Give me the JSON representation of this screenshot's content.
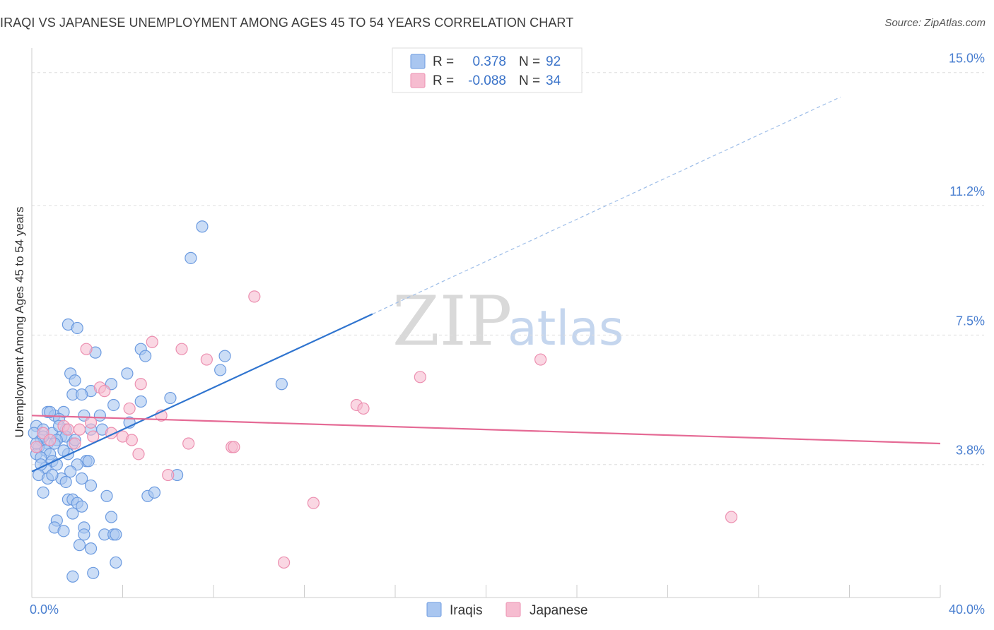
{
  "header": {
    "title": "IRAQI VS JAPANESE UNEMPLOYMENT AMONG AGES 45 TO 54 YEARS CORRELATION CHART",
    "source": "Source: ZipAtlas.com"
  },
  "watermark": {
    "zip": "ZIP",
    "atlas": "atlas"
  },
  "colors": {
    "iraqis_fill": "#a9c6f0",
    "iraqis_stroke": "#6c9be0",
    "iraqis_line": "#2f74cf",
    "japanese_fill": "#f6bcd0",
    "japanese_stroke": "#ec8fb0",
    "japanese_line": "#e56a95",
    "grid": "#dddddd",
    "tick_text": "#4a7fd0"
  },
  "legend_top": {
    "rows": [
      {
        "series": "iraqis",
        "r_label": "R =",
        "r_value": "0.378",
        "n_label": "N =",
        "n_value": "92"
      },
      {
        "series": "japanese",
        "r_label": "R =",
        "r_value": "-0.088",
        "n_label": "N =",
        "n_value": "34"
      }
    ]
  },
  "legend_bottom": {
    "items": [
      "Iraqis",
      "Japanese"
    ]
  },
  "chart_data": {
    "type": "scatter",
    "title": "IRAQI VS JAPANESE UNEMPLOYMENT AMONG AGES 45 TO 54 YEARS CORRELATION CHART",
    "xlabel": "",
    "ylabel": "Unemployment Among Ages 45 to 54 years",
    "xlim": [
      0,
      40
    ],
    "ylim": [
      0,
      15.6
    ],
    "x_tick_labels": [
      "0.0%",
      "40.0%"
    ],
    "y_ticks": [
      3.8,
      7.5,
      11.2,
      15.0
    ],
    "y_tick_labels": [
      "3.8%",
      "7.5%",
      "11.2%",
      "15.0%"
    ],
    "grid": true,
    "legend_position": "top-center",
    "series": [
      {
        "name": "Iraqis",
        "r": 0.378,
        "n": 92,
        "trend": {
          "x_start": 0,
          "y_start": 3.6,
          "x_solid_end": 15,
          "y_solid_end": 8.1,
          "x_dash_end": 35.6,
          "y_dash_end": 14.3
        },
        "points": [
          [
            7.5,
            10.6
          ],
          [
            7.0,
            9.7
          ],
          [
            1.6,
            7.8
          ],
          [
            2.0,
            7.7
          ],
          [
            2.8,
            7.0
          ],
          [
            4.8,
            7.1
          ],
          [
            5.0,
            6.9
          ],
          [
            8.5,
            6.9
          ],
          [
            8.3,
            6.5
          ],
          [
            4.2,
            6.4
          ],
          [
            1.7,
            6.4
          ],
          [
            1.9,
            6.2
          ],
          [
            11.0,
            6.1
          ],
          [
            3.5,
            6.1
          ],
          [
            2.6,
            5.9
          ],
          [
            1.8,
            5.8
          ],
          [
            2.2,
            5.8
          ],
          [
            6.1,
            5.7
          ],
          [
            4.8,
            5.6
          ],
          [
            3.6,
            5.5
          ],
          [
            0.7,
            5.3
          ],
          [
            1.0,
            5.2
          ],
          [
            1.4,
            5.3
          ],
          [
            2.3,
            5.2
          ],
          [
            3.0,
            5.2
          ],
          [
            1.2,
            5.1
          ],
          [
            4.3,
            5.0
          ],
          [
            0.2,
            4.9
          ],
          [
            0.5,
            4.8
          ],
          [
            1.5,
            4.8
          ],
          [
            2.6,
            4.8
          ],
          [
            3.1,
            4.8
          ],
          [
            0.1,
            4.7
          ],
          [
            0.9,
            4.7
          ],
          [
            1.3,
            4.6
          ],
          [
            1.5,
            4.6
          ],
          [
            0.4,
            4.5
          ],
          [
            1.1,
            4.5
          ],
          [
            0.7,
            4.4
          ],
          [
            1.8,
            4.4
          ],
          [
            1.0,
            4.4
          ],
          [
            0.3,
            4.3
          ],
          [
            0.6,
            4.2
          ],
          [
            0.8,
            4.1
          ],
          [
            0.2,
            4.1
          ],
          [
            1.6,
            4.1
          ],
          [
            0.4,
            4.0
          ],
          [
            0.9,
            3.9
          ],
          [
            2.4,
            3.9
          ],
          [
            1.1,
            3.8
          ],
          [
            2.0,
            3.8
          ],
          [
            0.6,
            3.7
          ],
          [
            1.7,
            3.6
          ],
          [
            0.3,
            3.5
          ],
          [
            0.7,
            3.4
          ],
          [
            1.3,
            3.4
          ],
          [
            2.2,
            3.4
          ],
          [
            1.5,
            3.3
          ],
          [
            6.4,
            3.5
          ],
          [
            2.6,
            3.2
          ],
          [
            0.5,
            3.0
          ],
          [
            3.3,
            2.9
          ],
          [
            5.1,
            2.9
          ],
          [
            5.4,
            3.0
          ],
          [
            1.6,
            2.8
          ],
          [
            1.8,
            2.8
          ],
          [
            2.0,
            2.7
          ],
          [
            2.2,
            2.6
          ],
          [
            1.8,
            2.4
          ],
          [
            3.5,
            2.3
          ],
          [
            1.1,
            2.2
          ],
          [
            1.0,
            2.0
          ],
          [
            1.4,
            1.9
          ],
          [
            2.3,
            2.0
          ],
          [
            2.3,
            1.8
          ],
          [
            3.2,
            1.8
          ],
          [
            3.6,
            1.8
          ],
          [
            3.7,
            1.8
          ],
          [
            2.1,
            1.5
          ],
          [
            2.6,
            1.4
          ],
          [
            3.7,
            1.0
          ],
          [
            2.7,
            0.7
          ],
          [
            1.8,
            0.6
          ],
          [
            0.5,
            4.6
          ],
          [
            1.2,
            4.9
          ],
          [
            0.8,
            5.3
          ],
          [
            0.2,
            4.4
          ],
          [
            1.4,
            4.2
          ],
          [
            0.9,
            3.5
          ],
          [
            2.5,
            3.9
          ],
          [
            0.4,
            3.8
          ],
          [
            1.9,
            4.5
          ]
        ]
      },
      {
        "name": "Japanese",
        "r": -0.088,
        "n": 34,
        "trend": {
          "x_start": 0,
          "y_start": 5.2,
          "x_end": 40,
          "y_end": 4.4
        },
        "points": [
          [
            9.8,
            8.6
          ],
          [
            5.3,
            7.3
          ],
          [
            6.6,
            7.1
          ],
          [
            2.4,
            7.1
          ],
          [
            7.7,
            6.8
          ],
          [
            22.4,
            6.8
          ],
          [
            17.1,
            6.3
          ],
          [
            4.8,
            6.1
          ],
          [
            3.0,
            6.0
          ],
          [
            14.3,
            5.5
          ],
          [
            14.6,
            5.4
          ],
          [
            4.3,
            5.4
          ],
          [
            5.7,
            5.2
          ],
          [
            2.6,
            5.0
          ],
          [
            1.4,
            4.9
          ],
          [
            1.6,
            4.8
          ],
          [
            2.1,
            4.8
          ],
          [
            0.5,
            4.7
          ],
          [
            3.5,
            4.7
          ],
          [
            4.0,
            4.6
          ],
          [
            0.8,
            4.5
          ],
          [
            2.7,
            4.6
          ],
          [
            4.4,
            4.5
          ],
          [
            6.9,
            4.4
          ],
          [
            8.8,
            4.3
          ],
          [
            8.9,
            4.3
          ],
          [
            0.2,
            4.3
          ],
          [
            1.9,
            4.4
          ],
          [
            4.7,
            4.1
          ],
          [
            6.0,
            3.5
          ],
          [
            12.4,
            2.7
          ],
          [
            30.8,
            2.3
          ],
          [
            11.1,
            1.0
          ],
          [
            3.2,
            5.9
          ]
        ]
      }
    ]
  }
}
